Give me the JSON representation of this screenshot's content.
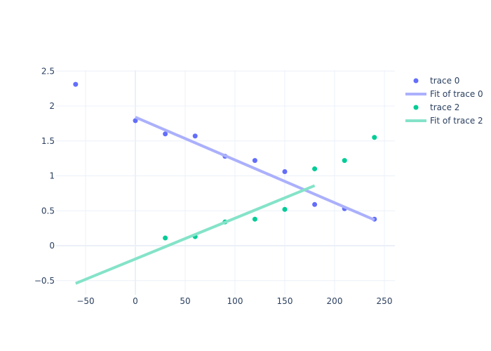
{
  "chart_data": {
    "type": "scatter",
    "title": "",
    "xlabel": "",
    "ylabel": "",
    "xlim": [
      -80,
      260
    ],
    "ylim": [
      -0.6,
      2.5
    ],
    "x_ticks": [
      -50,
      0,
      50,
      100,
      150,
      200,
      250
    ],
    "x_tick_labels": [
      "−50",
      "0",
      "50",
      "100",
      "150",
      "200",
      "250"
    ],
    "y_ticks": [
      -0.5,
      0,
      0.5,
      1,
      1.5,
      2,
      2.5
    ],
    "y_tick_labels": [
      "−0.5",
      "0",
      "0.5",
      "1",
      "1.5",
      "2",
      "2.5"
    ],
    "grid": true,
    "legend_position": "top-right",
    "series": [
      {
        "name": "trace 0",
        "mode": "markers",
        "color": "#636efa",
        "x": [
          -60,
          0,
          30,
          60,
          90,
          120,
          150,
          180,
          210,
          240
        ],
        "y": [
          2.31,
          1.79,
          1.6,
          1.57,
          1.28,
          1.22,
          1.06,
          0.59,
          0.53,
          0.38
        ]
      },
      {
        "name": "Fit of trace 0",
        "mode": "lines",
        "color": "#abb0fc",
        "x": [
          0,
          240
        ],
        "y": [
          1.84,
          0.37
        ]
      },
      {
        "name": "trace 2",
        "mode": "markers",
        "color": "#00cc96",
        "x": [
          30,
          60,
          90,
          120,
          150,
          180,
          210,
          240
        ],
        "y": [
          0.11,
          0.13,
          0.34,
          0.38,
          0.52,
          1.1,
          1.22,
          1.55
        ]
      },
      {
        "name": "Fit of trace 2",
        "mode": "lines",
        "color": "#84e3c8",
        "x": [
          -60,
          180
        ],
        "y": [
          -0.54,
          0.86
        ]
      }
    ]
  }
}
